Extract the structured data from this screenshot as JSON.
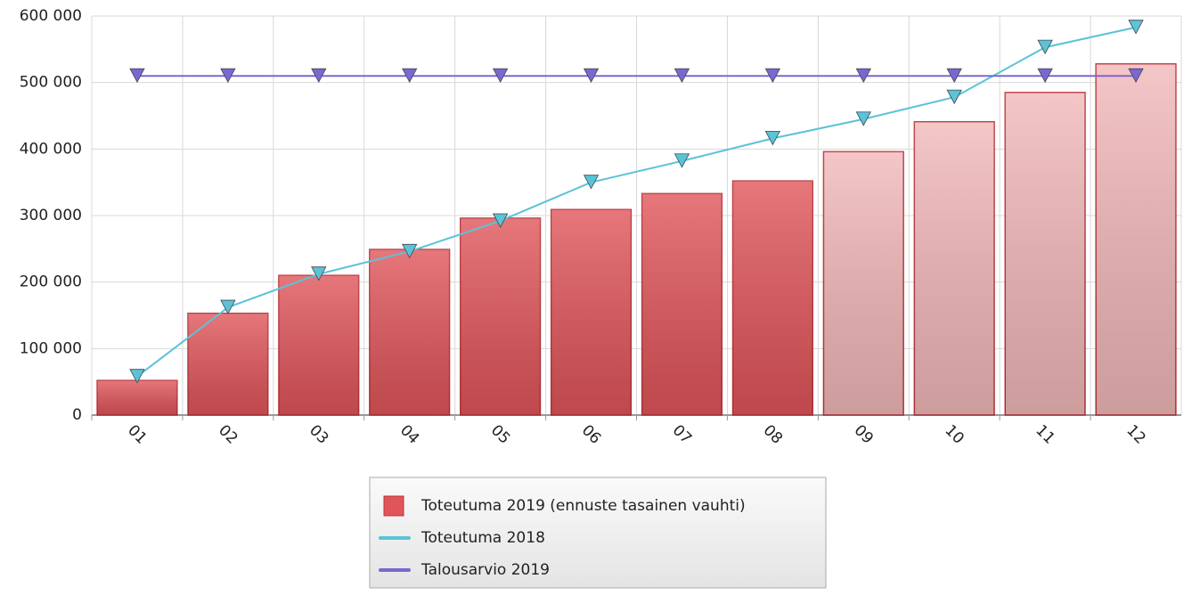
{
  "chart_data": {
    "type": "bar_line",
    "categories": [
      "01",
      "02",
      "03",
      "04",
      "05",
      "06",
      "07",
      "08",
      "09",
      "10",
      "11",
      "12"
    ],
    "series": [
      {
        "name": "Toteutuma 2019 (ennuste tasainen vauhti)",
        "kind": "bar",
        "color": "#e0555a",
        "colors": [
          "#e0555a",
          "#e0555a",
          "#e0555a",
          "#e0555a",
          "#e0555a",
          "#e0555a",
          "#e0555a",
          "#e0555a",
          "#f2b8b9",
          "#f2b8b9",
          "#f2b8b9",
          "#f2b8b9"
        ],
        "values": [
          52000,
          153000,
          210000,
          249000,
          296000,
          309000,
          333000,
          352000,
          396000,
          441000,
          485000,
          528000
        ]
      },
      {
        "name": "Toteutuma 2018",
        "kind": "line",
        "color": "#5bc3d6",
        "values": [
          58000,
          162000,
          212000,
          246000,
          292000,
          350000,
          382000,
          416000,
          445000,
          478000,
          553000,
          583000
        ]
      },
      {
        "name": "Talousarvio 2019",
        "kind": "line",
        "color": "#7a68cf",
        "values": [
          510000,
          510000,
          510000,
          510000,
          510000,
          510000,
          510000,
          510000,
          510000,
          510000,
          510000,
          510000
        ]
      }
    ],
    "ylim": [
      0,
      600000
    ],
    "yticks": [
      0,
      {
        "value": 100000,
        "label": "100 000"
      },
      {
        "value": 200000,
        "label": "200 000"
      },
      {
        "value": 300000,
        "label": "300 000"
      },
      {
        "value": 400000,
        "label": "400 000"
      },
      {
        "value": 500000,
        "label": "500 000"
      },
      {
        "value": 600000,
        "label": "600 000"
      }
    ],
    "grid": true,
    "legend": "bottom"
  }
}
